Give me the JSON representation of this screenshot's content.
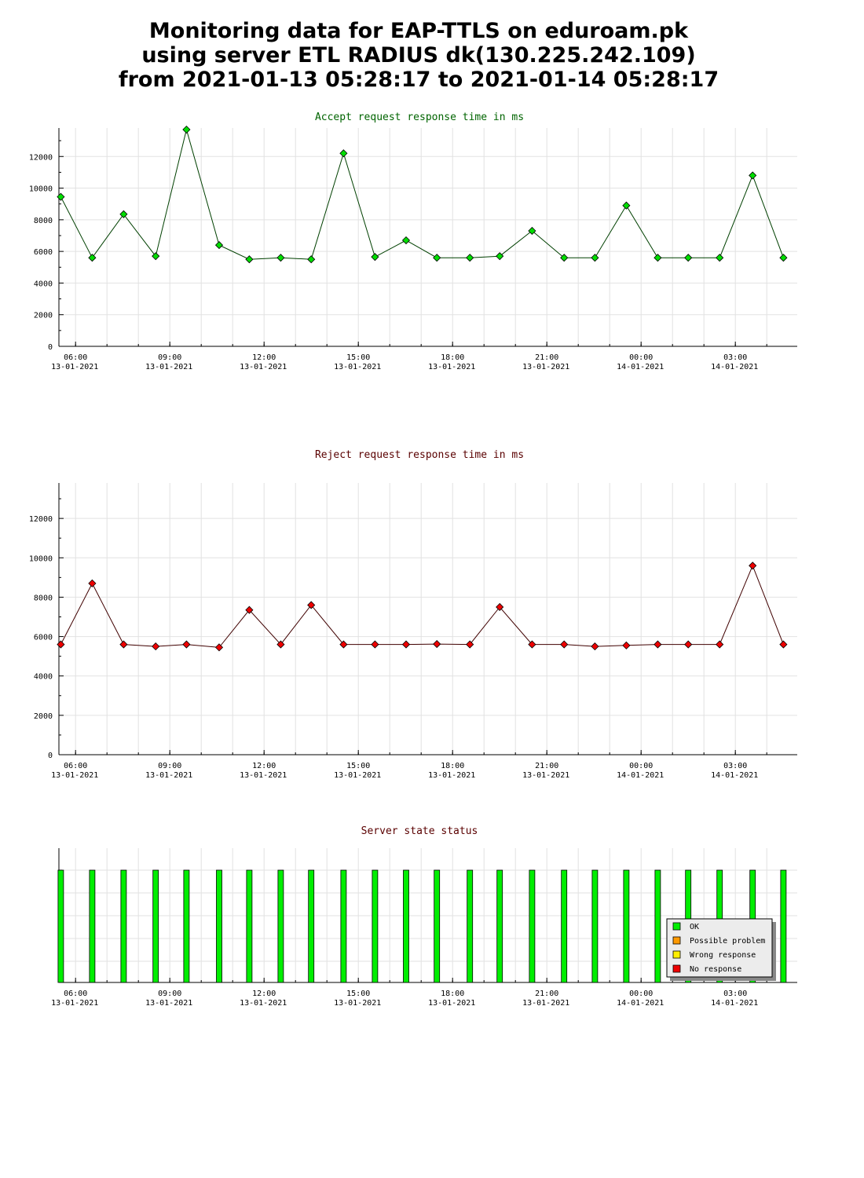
{
  "title_lines": [
    "Monitoring data for EAP-TTLS on eduroam.pk",
    "using server ETL RADIUS dk(130.225.242.109)",
    "from 2021-01-13 05:28:17 to 2021-01-14 05:28:17"
  ],
  "chart_data": [
    {
      "type": "line",
      "title": "Accept request response time in ms",
      "title_color": "#006400",
      "color": "#00dd00",
      "line_color": "#004000",
      "ylim": [
        0,
        13800
      ],
      "yticks": [
        0,
        2000,
        4000,
        6000,
        8000,
        10000,
        12000
      ],
      "grid": true,
      "x_hours": [
        5.53,
        6.53,
        7.53,
        8.55,
        9.53,
        10.57,
        11.53,
        12.53,
        13.5,
        14.53,
        15.53,
        16.52,
        17.5,
        18.55,
        19.5,
        20.53,
        21.55,
        22.53,
        23.53,
        24.53,
        25.5,
        26.5,
        27.55,
        28.53
      ],
      "values": [
        9450,
        5600,
        8350,
        5700,
        13700,
        6400,
        5500,
        5600,
        5500,
        12200,
        5650,
        6700,
        5600,
        5600,
        5700,
        7300,
        5600,
        5600,
        8900,
        5600,
        5600,
        5600,
        10800,
        5600
      ]
    },
    {
      "type": "line",
      "title": "Reject request response time in ms",
      "title_color": "#5a0000",
      "color": "#ee0000",
      "line_color": "#400000",
      "ylim": [
        0,
        13800
      ],
      "yticks": [
        0,
        2000,
        4000,
        6000,
        8000,
        10000,
        12000
      ],
      "grid": true,
      "x_hours": [
        5.53,
        6.53,
        7.53,
        8.55,
        9.53,
        10.57,
        11.53,
        12.53,
        13.5,
        14.53,
        15.53,
        16.52,
        17.5,
        18.55,
        19.5,
        20.53,
        21.55,
        22.53,
        23.53,
        24.53,
        25.5,
        26.5,
        27.55,
        28.53
      ],
      "values": [
        5600,
        8700,
        5600,
        5500,
        5600,
        5450,
        7350,
        5600,
        7600,
        5600,
        5600,
        5600,
        5620,
        5600,
        7500,
        5600,
        5600,
        5500,
        5550,
        5600,
        5600,
        5600,
        9600,
        5600
      ]
    },
    {
      "type": "bar",
      "title": "Server state status",
      "title_color": "#5a0000",
      "x_hours": [
        5.53,
        6.53,
        7.53,
        8.55,
        9.53,
        10.57,
        11.53,
        12.53,
        13.5,
        14.53,
        15.53,
        16.52,
        17.5,
        18.55,
        19.5,
        20.53,
        21.55,
        22.53,
        23.53,
        24.53,
        25.5,
        26.5,
        27.55,
        28.53
      ],
      "states": [
        "OK",
        "OK",
        "OK",
        "OK",
        "OK",
        "OK",
        "OK",
        "OK",
        "OK",
        "OK",
        "OK",
        "OK",
        "OK",
        "OK",
        "OK",
        "OK",
        "OK",
        "OK",
        "OK",
        "OK",
        "OK",
        "OK",
        "OK",
        "OK"
      ],
      "legend_position": "bottom-right",
      "legend": [
        {
          "label": "OK",
          "color": "#00ee00"
        },
        {
          "label": "Possible problem",
          "color": "#ff9900"
        },
        {
          "label": "Wrong response",
          "color": "#ffee00"
        },
        {
          "label": "No response",
          "color": "#ee0000"
        }
      ]
    }
  ],
  "x_ticks": [
    {
      "hour": 6,
      "time": "06:00",
      "date": "13-01-2021"
    },
    {
      "hour": 9,
      "time": "09:00",
      "date": "13-01-2021"
    },
    {
      "hour": 12,
      "time": "12:00",
      "date": "13-01-2021"
    },
    {
      "hour": 15,
      "time": "15:00",
      "date": "13-01-2021"
    },
    {
      "hour": 18,
      "time": "18:00",
      "date": "13-01-2021"
    },
    {
      "hour": 21,
      "time": "21:00",
      "date": "13-01-2021"
    },
    {
      "hour": 24,
      "time": "00:00",
      "date": "14-01-2021"
    },
    {
      "hour": 27,
      "time": "03:00",
      "date": "14-01-2021"
    }
  ]
}
